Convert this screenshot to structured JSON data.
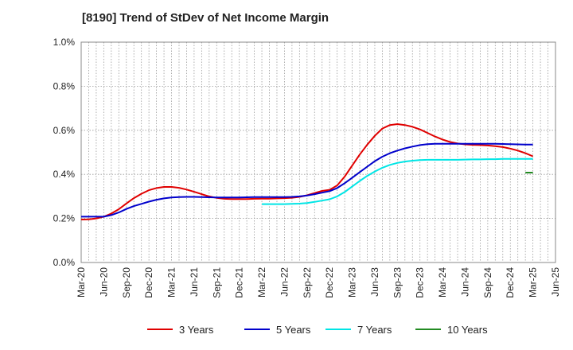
{
  "chart_data": {
    "type": "line",
    "title": "[8190]  Trend of StDev of Net Income Margin",
    "xlabel": "",
    "ylabel": "",
    "x_ticks": [
      "Mar-20",
      "Jun-20",
      "Sep-20",
      "Dec-20",
      "Mar-21",
      "Jun-21",
      "Sep-21",
      "Dec-21",
      "Mar-22",
      "Jun-22",
      "Sep-22",
      "Dec-22",
      "Mar-23",
      "Jun-23",
      "Sep-23",
      "Dec-23",
      "Mar-24",
      "Jun-24",
      "Sep-24",
      "Dec-24",
      "Mar-25",
      "Jun-25"
    ],
    "y_ticks": [
      "0.0%",
      "0.2%",
      "0.4%",
      "0.6%",
      "0.8%",
      "1.0%"
    ],
    "ylim": [
      0,
      1.0
    ],
    "grid": true,
    "legend_position": "bottom",
    "series": [
      {
        "name": "3 Years",
        "color": "#e00000",
        "points": [
          [
            "Mar-20",
            0.195
          ],
          [
            "Apr-20",
            0.196
          ],
          [
            "May-20",
            0.2
          ],
          [
            "Jun-20",
            0.208
          ],
          [
            "Jul-20",
            0.222
          ],
          [
            "Aug-20",
            0.242
          ],
          [
            "Sep-20",
            0.268
          ],
          [
            "Oct-20",
            0.292
          ],
          [
            "Nov-20",
            0.312
          ],
          [
            "Dec-20",
            0.328
          ],
          [
            "Jan-21",
            0.338
          ],
          [
            "Feb-21",
            0.343
          ],
          [
            "Mar-21",
            0.343
          ],
          [
            "Apr-21",
            0.339
          ],
          [
            "May-21",
            0.331
          ],
          [
            "Jun-21",
            0.321
          ],
          [
            "Jul-21",
            0.31
          ],
          [
            "Aug-21",
            0.3
          ],
          [
            "Sep-21",
            0.293
          ],
          [
            "Oct-21",
            0.289
          ],
          [
            "Nov-21",
            0.288
          ],
          [
            "Dec-21",
            0.288
          ],
          [
            "Jan-22",
            0.288
          ],
          [
            "Feb-22",
            0.289
          ],
          [
            "Mar-22",
            0.29
          ],
          [
            "Apr-22",
            0.29
          ],
          [
            "May-22",
            0.291
          ],
          [
            "Jun-22",
            0.292
          ],
          [
            "Jul-22",
            0.294
          ],
          [
            "Aug-22",
            0.298
          ],
          [
            "Sep-22",
            0.305
          ],
          [
            "Oct-22",
            0.315
          ],
          [
            "Nov-22",
            0.325
          ],
          [
            "Dec-22",
            0.33
          ],
          [
            "Jan-23",
            0.35
          ],
          [
            "Feb-23",
            0.39
          ],
          [
            "Mar-23",
            0.44
          ],
          [
            "Apr-23",
            0.49
          ],
          [
            "May-23",
            0.535
          ],
          [
            "Jun-23",
            0.575
          ],
          [
            "Jul-23",
            0.608
          ],
          [
            "Aug-23",
            0.624
          ],
          [
            "Sep-23",
            0.628
          ],
          [
            "Oct-23",
            0.624
          ],
          [
            "Nov-23",
            0.616
          ],
          [
            "Dec-23",
            0.604
          ],
          [
            "Jan-24",
            0.588
          ],
          [
            "Feb-24",
            0.572
          ],
          [
            "Mar-24",
            0.558
          ],
          [
            "Apr-24",
            0.547
          ],
          [
            "May-24",
            0.54
          ],
          [
            "Jun-24",
            0.536
          ],
          [
            "Jul-24",
            0.534
          ],
          [
            "Aug-24",
            0.533
          ],
          [
            "Sep-24",
            0.531
          ],
          [
            "Oct-24",
            0.528
          ],
          [
            "Nov-24",
            0.524
          ],
          [
            "Dec-24",
            0.517
          ],
          [
            "Jan-25",
            0.508
          ],
          [
            "Feb-25",
            0.496
          ],
          [
            "Mar-25",
            0.482
          ]
        ]
      },
      {
        "name": "5 Years",
        "color": "#0000cc",
        "points": [
          [
            "Mar-20",
            0.208
          ],
          [
            "Apr-20",
            0.208
          ],
          [
            "May-20",
            0.208
          ],
          [
            "Jun-20",
            0.208
          ],
          [
            "Jul-20",
            0.215
          ],
          [
            "Aug-20",
            0.227
          ],
          [
            "Sep-20",
            0.243
          ],
          [
            "Oct-20",
            0.256
          ],
          [
            "Nov-20",
            0.266
          ],
          [
            "Dec-20",
            0.276
          ],
          [
            "Jan-21",
            0.285
          ],
          [
            "Feb-21",
            0.291
          ],
          [
            "Mar-21",
            0.295
          ],
          [
            "Apr-21",
            0.297
          ],
          [
            "May-21",
            0.298
          ],
          [
            "Jun-21",
            0.298
          ],
          [
            "Jul-21",
            0.297
          ],
          [
            "Aug-21",
            0.296
          ],
          [
            "Sep-21",
            0.295
          ],
          [
            "Oct-21",
            0.295
          ],
          [
            "Nov-21",
            0.295
          ],
          [
            "Dec-21",
            0.295
          ],
          [
            "Jan-22",
            0.296
          ],
          [
            "Feb-22",
            0.297
          ],
          [
            "Mar-22",
            0.297
          ],
          [
            "Apr-22",
            0.297
          ],
          [
            "May-22",
            0.297
          ],
          [
            "Jun-22",
            0.297
          ],
          [
            "Jul-22",
            0.298
          ],
          [
            "Aug-22",
            0.3
          ],
          [
            "Sep-22",
            0.304
          ],
          [
            "Oct-22",
            0.31
          ],
          [
            "Nov-22",
            0.317
          ],
          [
            "Dec-22",
            0.324
          ],
          [
            "Jan-23",
            0.338
          ],
          [
            "Feb-23",
            0.36
          ],
          [
            "Mar-23",
            0.385
          ],
          [
            "Apr-23",
            0.41
          ],
          [
            "May-23",
            0.435
          ],
          [
            "Jun-23",
            0.46
          ],
          [
            "Jul-23",
            0.48
          ],
          [
            "Aug-23",
            0.496
          ],
          [
            "Sep-23",
            0.508
          ],
          [
            "Oct-23",
            0.518
          ],
          [
            "Nov-23",
            0.526
          ],
          [
            "Dec-23",
            0.533
          ],
          [
            "Jan-24",
            0.537
          ],
          [
            "Feb-24",
            0.539
          ],
          [
            "Mar-24",
            0.539
          ],
          [
            "Apr-24",
            0.539
          ],
          [
            "May-24",
            0.539
          ],
          [
            "Jun-24",
            0.539
          ],
          [
            "Jul-24",
            0.539
          ],
          [
            "Aug-24",
            0.539
          ],
          [
            "Sep-24",
            0.539
          ],
          [
            "Oct-24",
            0.539
          ],
          [
            "Nov-24",
            0.538
          ],
          [
            "Dec-24",
            0.537
          ],
          [
            "Jan-25",
            0.536
          ],
          [
            "Feb-25",
            0.535
          ],
          [
            "Mar-25",
            0.535
          ]
        ]
      },
      {
        "name": "7 Years",
        "color": "#00e5e5",
        "points": [
          [
            "Mar-22",
            0.265
          ],
          [
            "Apr-22",
            0.265
          ],
          [
            "May-22",
            0.265
          ],
          [
            "Jun-22",
            0.265
          ],
          [
            "Jul-22",
            0.266
          ],
          [
            "Aug-22",
            0.267
          ],
          [
            "Sep-22",
            0.27
          ],
          [
            "Oct-22",
            0.275
          ],
          [
            "Nov-22",
            0.281
          ],
          [
            "Dec-22",
            0.287
          ],
          [
            "Jan-23",
            0.3
          ],
          [
            "Feb-23",
            0.32
          ],
          [
            "Mar-23",
            0.345
          ],
          [
            "Apr-23",
            0.37
          ],
          [
            "May-23",
            0.393
          ],
          [
            "Jun-23",
            0.413
          ],
          [
            "Jul-23",
            0.43
          ],
          [
            "Aug-23",
            0.443
          ],
          [
            "Sep-23",
            0.452
          ],
          [
            "Oct-23",
            0.458
          ],
          [
            "Nov-23",
            0.462
          ],
          [
            "Dec-23",
            0.465
          ],
          [
            "Jan-24",
            0.466
          ],
          [
            "Feb-24",
            0.466
          ],
          [
            "Mar-24",
            0.466
          ],
          [
            "Apr-24",
            0.466
          ],
          [
            "May-24",
            0.466
          ],
          [
            "Jun-24",
            0.467
          ],
          [
            "Jul-24",
            0.468
          ],
          [
            "Aug-24",
            0.468
          ],
          [
            "Sep-24",
            0.469
          ],
          [
            "Oct-24",
            0.469
          ],
          [
            "Nov-24",
            0.47
          ],
          [
            "Dec-24",
            0.47
          ],
          [
            "Jan-25",
            0.47
          ],
          [
            "Feb-25",
            0.47
          ],
          [
            "Mar-25",
            0.47
          ]
        ]
      },
      {
        "name": "10 Years",
        "color": "#228b22",
        "points": [
          [
            "Feb-25",
            0.408
          ],
          [
            "Mar-25",
            0.408
          ]
        ]
      }
    ]
  }
}
